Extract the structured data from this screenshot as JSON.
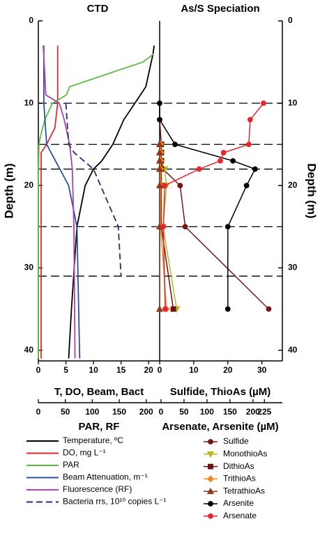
{
  "chart_data": {
    "type": "profile",
    "left_title": "CTD",
    "right_title": "As/S Speciation",
    "ylabel": "Depth (m)",
    "ylim": [
      0,
      41.3
    ],
    "yticks": [
      0,
      10,
      20,
      30,
      40
    ],
    "sampling_depths": [
      10,
      15,
      18,
      25,
      31
    ],
    "left": {
      "xlabel": "T, DO, Beam, Bact",
      "xlim": [
        0,
        22
      ],
      "xticks": [
        0,
        5,
        10,
        15,
        20
      ],
      "x2label": "PAR, RF",
      "x2lim": [
        0,
        225
      ],
      "x2ticks": [
        0,
        50,
        100,
        150,
        200
      ]
    },
    "right": {
      "xlabel": "Sulfide, ThioAs (µM)",
      "xlim": [
        0,
        36
      ],
      "xticks": [
        0,
        10,
        20,
        30
      ],
      "x2label": "Arsenate, Arsenite (µM)",
      "x2lim": [
        -3,
        264
      ],
      "x2ticks": [
        0,
        50,
        100,
        150,
        200,
        225
      ]
    },
    "series": [
      {
        "name": "Temperature, ºC",
        "color": "#000000",
        "panel": "left",
        "axis": "x",
        "depth": [
          3,
          4,
          8,
          10,
          12,
          15,
          17,
          18,
          20,
          25,
          30,
          35,
          41
        ],
        "values": [
          21,
          20.8,
          19.5,
          17.5,
          15.5,
          13.5,
          11.5,
          10,
          8.5,
          7,
          6.5,
          6,
          5.5
        ]
      },
      {
        "name": "DO, mg L⁻¹",
        "color": "#e8262b",
        "panel": "left",
        "axis": "x",
        "depth": [
          3,
          10,
          13,
          15,
          16,
          20,
          41
        ],
        "values": [
          3.5,
          3.5,
          3,
          1.5,
          0.5,
          0.5,
          0.5
        ]
      },
      {
        "name": "PAR",
        "color": "#5dbb46",
        "panel": "left",
        "axis": "x2",
        "depth": [
          4,
          5,
          6,
          8,
          9,
          10,
          12,
          14,
          15,
          20,
          41
        ],
        "values": [
          214,
          194,
          148,
          58,
          52,
          26,
          12,
          4,
          1,
          0,
          0
        ]
      },
      {
        "name": "Beam Attenuation, m⁻¹",
        "color": "#2e4fa0",
        "panel": "left",
        "axis": "x",
        "depth": [
          3,
          10,
          15,
          20,
          25,
          41
        ],
        "values": [
          1,
          1,
          1.5,
          5.5,
          7,
          7.5
        ]
      },
      {
        "name": "Fluorescence (RF)",
        "color": "#b040b0",
        "panel": "left",
        "axis": "x2",
        "depth": [
          3,
          9,
          10,
          12,
          15,
          18,
          25,
          41
        ],
        "values": [
          9,
          14,
          39,
          48,
          58,
          63,
          66,
          68
        ]
      },
      {
        "name": "Bacteria rrs, 10¹⁰ copies L⁻¹",
        "color": "#1f2f7a",
        "panel": "left",
        "axis": "x",
        "dashed": true,
        "depth": [
          10,
          15,
          16,
          18,
          25,
          31
        ],
        "values": [
          5,
          5.5,
          6.5,
          10,
          14.5,
          15
        ]
      },
      {
        "name": "Sulfide",
        "color": "#7a1414",
        "panel": "right",
        "axis": "x",
        "marker": "circle",
        "depth": [
          10,
          12,
          15,
          16,
          17,
          18,
          20,
          25,
          35
        ],
        "values": [
          0,
          0,
          0.5,
          0.5,
          0.5,
          1,
          6,
          7.5,
          32
        ]
      },
      {
        "name": "MonothioAs",
        "color": "#b8b820",
        "panel": "right",
        "axis": "x",
        "marker": "tri-down",
        "depth": [
          15,
          16,
          17,
          18,
          20,
          25,
          35
        ],
        "values": [
          0.5,
          0.5,
          0.5,
          1.5,
          2,
          1,
          5
        ]
      },
      {
        "name": "DithioAs",
        "color": "#6b0f0f",
        "panel": "right",
        "axis": "x",
        "marker": "square",
        "depth": [
          15,
          16,
          17,
          18,
          20,
          25,
          35
        ],
        "values": [
          0.5,
          0.5,
          0.5,
          0.5,
          0.5,
          0.5,
          4
        ]
      },
      {
        "name": "TrithioAs",
        "color": "#f08a1e",
        "panel": "right",
        "axis": "x",
        "marker": "diamond",
        "depth": [
          15,
          16,
          17,
          18,
          20,
          25,
          35
        ],
        "values": [
          0.3,
          0.3,
          0.3,
          0.3,
          0.3,
          0.3,
          2
        ]
      },
      {
        "name": "TetrathioAs",
        "color": "#8b3a1a",
        "panel": "right",
        "axis": "x",
        "marker": "tri-up",
        "depth": [
          15,
          16,
          17,
          18,
          20,
          25,
          35
        ],
        "values": [
          0,
          0,
          0,
          0,
          0,
          0,
          0
        ]
      },
      {
        "name": "Arsenite",
        "color": "#000000",
        "panel": "right",
        "axis": "x",
        "marker": "circle",
        "depth": [
          10,
          12,
          15,
          17,
          18,
          20,
          25,
          35
        ],
        "values": [
          0,
          0,
          4.5,
          21.5,
          28,
          25.5,
          20,
          20
        ]
      },
      {
        "name": "Arsenate",
        "color": "#e8262b",
        "panel": "right",
        "axis": "x2",
        "marker": "circle",
        "depth": [
          10,
          12,
          15,
          16,
          17,
          18,
          20,
          25,
          35
        ],
        "values": [
          223,
          194,
          191,
          136,
          129,
          83,
          8,
          5,
          9
        ]
      }
    ]
  }
}
